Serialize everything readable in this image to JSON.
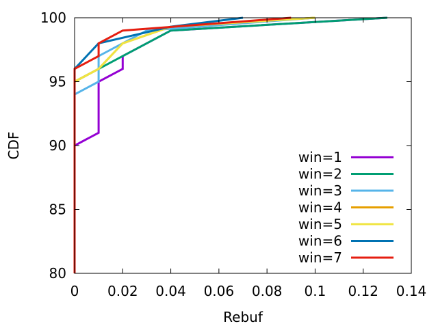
{
  "chart_data": {
    "type": "line",
    "title": "",
    "xlabel": "Rebuf",
    "ylabel": "CDF",
    "xlim": [
      0,
      0.14
    ],
    "ylim": [
      80,
      100
    ],
    "x_ticks": [
      0,
      0.02,
      0.04,
      0.06,
      0.08,
      0.1,
      0.12,
      0.14
    ],
    "x_tick_labels": [
      "0",
      "0.02",
      "0.04",
      "0.06",
      "0.08",
      "0.1",
      "0.12",
      "0.14"
    ],
    "y_ticks": [
      80,
      85,
      90,
      95,
      100
    ],
    "y_tick_labels": [
      "80",
      "85",
      "90",
      "95",
      "100"
    ],
    "grid": false,
    "legend_position": "bottom-right",
    "series": [
      {
        "name": "win=1",
        "color": "#9400d3",
        "points": [
          [
            0,
            80
          ],
          [
            0,
            90
          ],
          [
            0.01,
            91
          ],
          [
            0.01,
            95
          ],
          [
            0.02,
            96
          ],
          [
            0.02,
            97
          ],
          [
            0.04,
            99
          ],
          [
            0.13,
            100
          ]
        ]
      },
      {
        "name": "win=2",
        "color": "#009e73",
        "points": [
          [
            0,
            80
          ],
          [
            0,
            95
          ],
          [
            0.01,
            96
          ],
          [
            0.02,
            97
          ],
          [
            0.04,
            99
          ],
          [
            0.13,
            100
          ]
        ]
      },
      {
        "name": "win=3",
        "color": "#56b4e9",
        "points": [
          [
            0,
            80
          ],
          [
            0,
            94
          ],
          [
            0.01,
            95
          ],
          [
            0.01,
            97
          ],
          [
            0.03,
            99
          ],
          [
            0.1,
            100
          ]
        ]
      },
      {
        "name": "win=4",
        "color": "#e69f00",
        "points": [
          [
            0,
            80
          ],
          [
            0,
            95
          ],
          [
            0.01,
            96
          ],
          [
            0.02,
            98
          ],
          [
            0.04,
            99.3
          ],
          [
            0.1,
            100
          ]
        ]
      },
      {
        "name": "win=5",
        "color": "#f0e442",
        "points": [
          [
            0,
            80
          ],
          [
            0,
            95
          ],
          [
            0.01,
            96
          ],
          [
            0.02,
            98
          ],
          [
            0.04,
            99.3
          ],
          [
            0.1,
            100
          ]
        ]
      },
      {
        "name": "win=6",
        "color": "#0072b2",
        "points": [
          [
            0,
            80
          ],
          [
            0,
            96
          ],
          [
            0.01,
            98
          ],
          [
            0.04,
            99.3
          ],
          [
            0.07,
            100
          ]
        ]
      },
      {
        "name": "win=7",
        "color": "#e51e10",
        "points": [
          [
            0,
            80
          ],
          [
            0,
            96
          ],
          [
            0.01,
            97
          ],
          [
            0.01,
            98
          ],
          [
            0.02,
            99
          ],
          [
            0.09,
            100
          ]
        ]
      }
    ]
  }
}
